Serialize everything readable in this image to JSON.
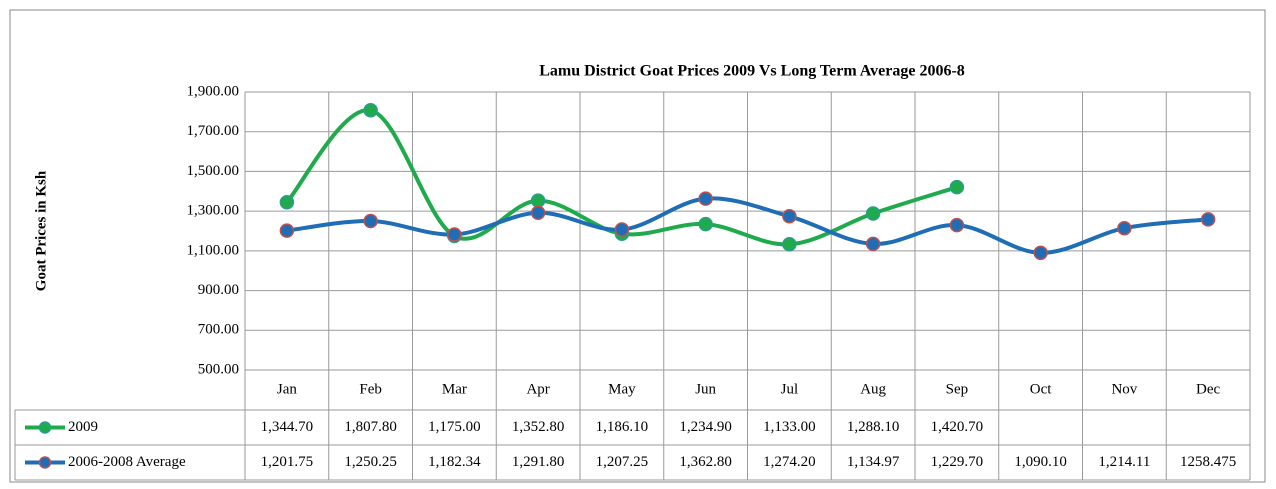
{
  "chart_data": {
    "type": "line",
    "title": "Lamu District Goat Prices 2009 Vs Long Term Average 2006-8",
    "y_label": "Goat Prices in Ksh",
    "categories": [
      "Jan",
      "Feb",
      "Mar",
      "Apr",
      "May",
      "Jun",
      "Jul",
      "Aug",
      "Sep",
      "Oct",
      "Nov",
      "Dec"
    ],
    "series": [
      {
        "name": "2009",
        "color": "#1faa4b",
        "marker_edge": "#2a9d8f",
        "values": [
          1344.7,
          1807.8,
          1175.0,
          1352.8,
          1186.1,
          1234.9,
          1133.0,
          1288.1,
          1420.7,
          null,
          null,
          null
        ],
        "value_labels": [
          "1,344.70",
          "1,807.80",
          "1,175.00",
          "1,352.80",
          "1,186.10",
          "1,234.90",
          "1,133.00",
          "1,288.10",
          "1,420.70",
          null,
          null,
          null
        ]
      },
      {
        "name": "2006-2008 Average",
        "color": "#1f6db5",
        "marker_edge": "#c0504d",
        "values": [
          1201.75,
          1250.25,
          1182.34,
          1291.8,
          1207.25,
          1362.8,
          1274.2,
          1134.97,
          1229.7,
          1090.1,
          1214.11,
          1258.475
        ],
        "value_labels": [
          "1,201.75",
          "1,250.25",
          "1,182.34",
          "1,291.80",
          "1,207.25",
          "1,362.80",
          "1,274.20",
          "1,134.97",
          "1,229.70",
          "1,090.10",
          "1,214.11",
          "1258.475"
        ]
      }
    ],
    "ylim": [
      500,
      1900
    ],
    "yticks": [
      {
        "value": 500,
        "label": "500.00"
      },
      {
        "value": 700,
        "label": "700.00"
      },
      {
        "value": 900,
        "label": "900.00"
      },
      {
        "value": 1100,
        "label": "1,100.00"
      },
      {
        "value": 1300,
        "label": "1,300.00"
      },
      {
        "value": 1500,
        "label": "1,500.00"
      },
      {
        "value": 1700,
        "label": "1,700.00"
      },
      {
        "value": 1900,
        "label": "1,900.00"
      }
    ],
    "grid": true,
    "smooth": true
  }
}
